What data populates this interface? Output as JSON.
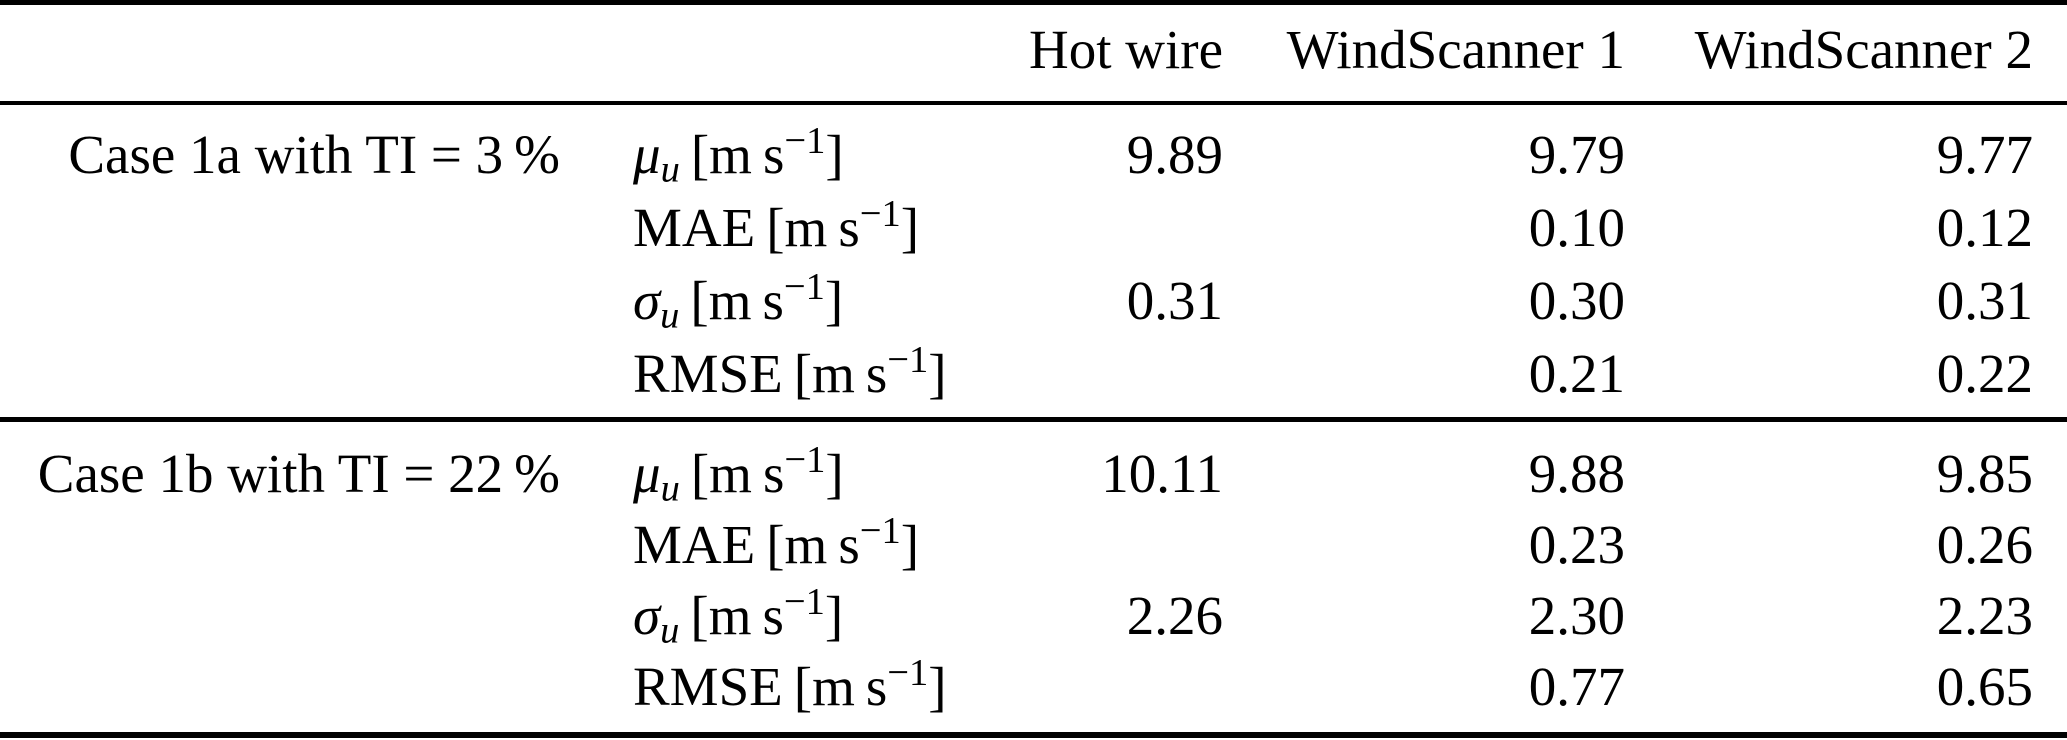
{
  "table": {
    "header": [
      "Hot wire",
      "WindScanner 1",
      "WindScanner 2"
    ],
    "unit": {
      "pre": "[m s",
      "sup": "−1",
      "post": "]"
    },
    "sections": [
      {
        "case_label": "Case 1a with TI = 3 %",
        "rows": [
          {
            "sym": "μ",
            "sub": "u",
            "values": [
              "9.89",
              "9.79",
              "9.77"
            ]
          },
          {
            "sym": "MAE",
            "sub": "",
            "values": [
              "",
              "0.10",
              "0.12"
            ]
          },
          {
            "sym": "σ",
            "sub": "u",
            "values": [
              "0.31",
              "0.30",
              "0.31"
            ]
          },
          {
            "sym": "RMSE",
            "sub": "",
            "values": [
              "",
              "0.21",
              "0.22"
            ]
          }
        ]
      },
      {
        "case_label": "Case 1b with TI = 22 %",
        "rows": [
          {
            "sym": "μ",
            "sub": "u",
            "values": [
              "10.11",
              "9.88",
              "9.85"
            ]
          },
          {
            "sym": "MAE",
            "sub": "",
            "values": [
              "",
              "0.23",
              "0.26"
            ]
          },
          {
            "sym": "σ",
            "sub": "u",
            "values": [
              "2.26",
              "2.30",
              "2.23"
            ]
          },
          {
            "sym": "RMSE",
            "sub": "",
            "values": [
              "",
              "0.77",
              "0.65"
            ]
          }
        ]
      }
    ],
    "colors": {
      "text": "#000000",
      "background": "#ffffff",
      "rule": "#000000"
    }
  }
}
